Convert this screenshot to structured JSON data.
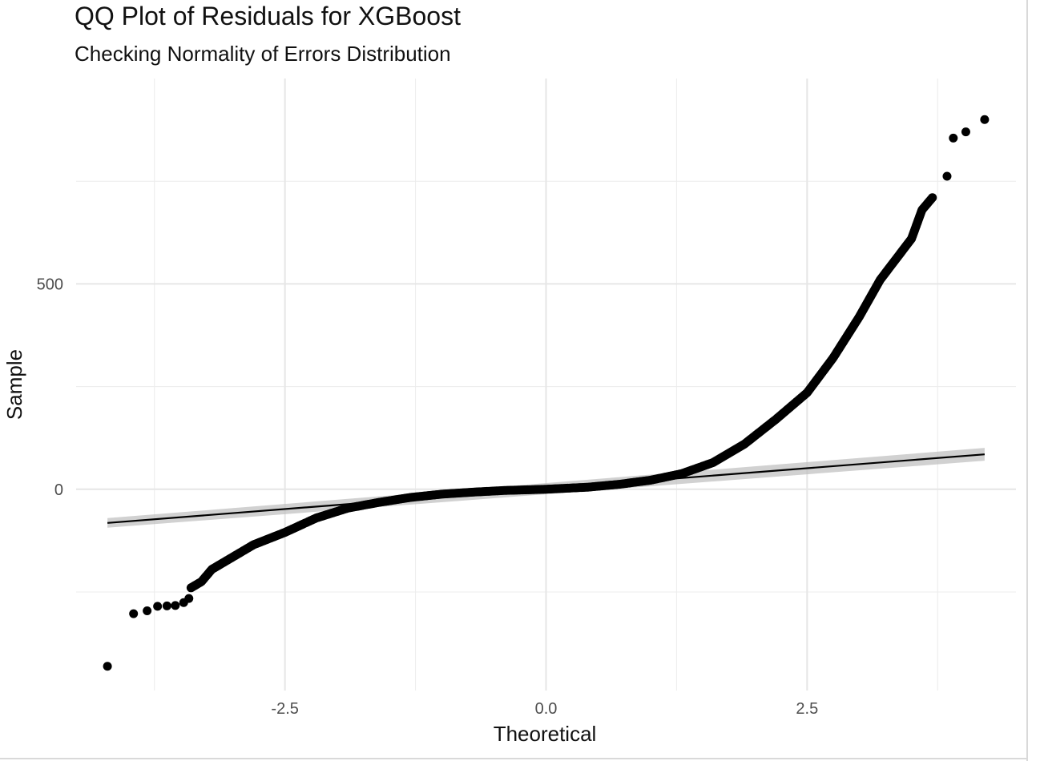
{
  "chart_data": {
    "type": "scatter",
    "title": "QQ Plot of Residuals for XGBoost",
    "subtitle": "Checking Normality of Errors Distribution",
    "xlabel": "Theoretical",
    "ylabel": "Sample",
    "xlim": [
      -4.5,
      4.5
    ],
    "ylim": [
      -490,
      1000
    ],
    "x_ticks": [
      -2.5,
      0.0,
      2.5
    ],
    "x_tick_labels": [
      "-2.5",
      "0.0",
      "2.5"
    ],
    "y_ticks": [
      0,
      500
    ],
    "y_tick_labels": [
      "0",
      "500"
    ],
    "grid": true,
    "legend": "none",
    "reference_line": {
      "x": [
        -4.2,
        4.2
      ],
      "y": [
        -82,
        85
      ]
    },
    "series": [
      {
        "outliers": [
          {
            "x": -4.2,
            "y": -431
          },
          {
            "x": -3.95,
            "y": -303
          },
          {
            "x": -3.82,
            "y": -296
          },
          {
            "x": -3.72,
            "y": -285
          },
          {
            "x": -3.63,
            "y": -284
          },
          {
            "x": -3.55,
            "y": -283
          },
          {
            "x": -3.47,
            "y": -276
          },
          {
            "x": -3.42,
            "y": -266
          },
          {
            "x": 3.84,
            "y": 762
          },
          {
            "x": 3.9,
            "y": 855
          },
          {
            "x": 4.02,
            "y": 870
          },
          {
            "x": 4.2,
            "y": 900
          }
        ],
        "points": [
          {
            "x": -3.4,
            "y": -240
          },
          {
            "x": -3.3,
            "y": -225
          },
          {
            "x": -3.2,
            "y": -195
          },
          {
            "x": -3.0,
            "y": -165
          },
          {
            "x": -2.8,
            "y": -135
          },
          {
            "x": -2.5,
            "y": -105
          },
          {
            "x": -2.2,
            "y": -70
          },
          {
            "x": -1.9,
            "y": -46
          },
          {
            "x": -1.6,
            "y": -32
          },
          {
            "x": -1.3,
            "y": -20
          },
          {
            "x": -1.0,
            "y": -12
          },
          {
            "x": -0.7,
            "y": -7
          },
          {
            "x": -0.4,
            "y": -3
          },
          {
            "x": 0.0,
            "y": 0
          },
          {
            "x": 0.4,
            "y": 5
          },
          {
            "x": 0.7,
            "y": 12
          },
          {
            "x": 1.0,
            "y": 22
          },
          {
            "x": 1.3,
            "y": 38
          },
          {
            "x": 1.6,
            "y": 65
          },
          {
            "x": 1.9,
            "y": 110
          },
          {
            "x": 2.2,
            "y": 170
          },
          {
            "x": 2.5,
            "y": 235
          },
          {
            "x": 2.75,
            "y": 320
          },
          {
            "x": 3.0,
            "y": 420
          },
          {
            "x": 3.2,
            "y": 510
          },
          {
            "x": 3.35,
            "y": 560
          },
          {
            "x": 3.5,
            "y": 610
          },
          {
            "x": 3.6,
            "y": 680
          },
          {
            "x": 3.7,
            "y": 710
          }
        ]
      }
    ]
  }
}
